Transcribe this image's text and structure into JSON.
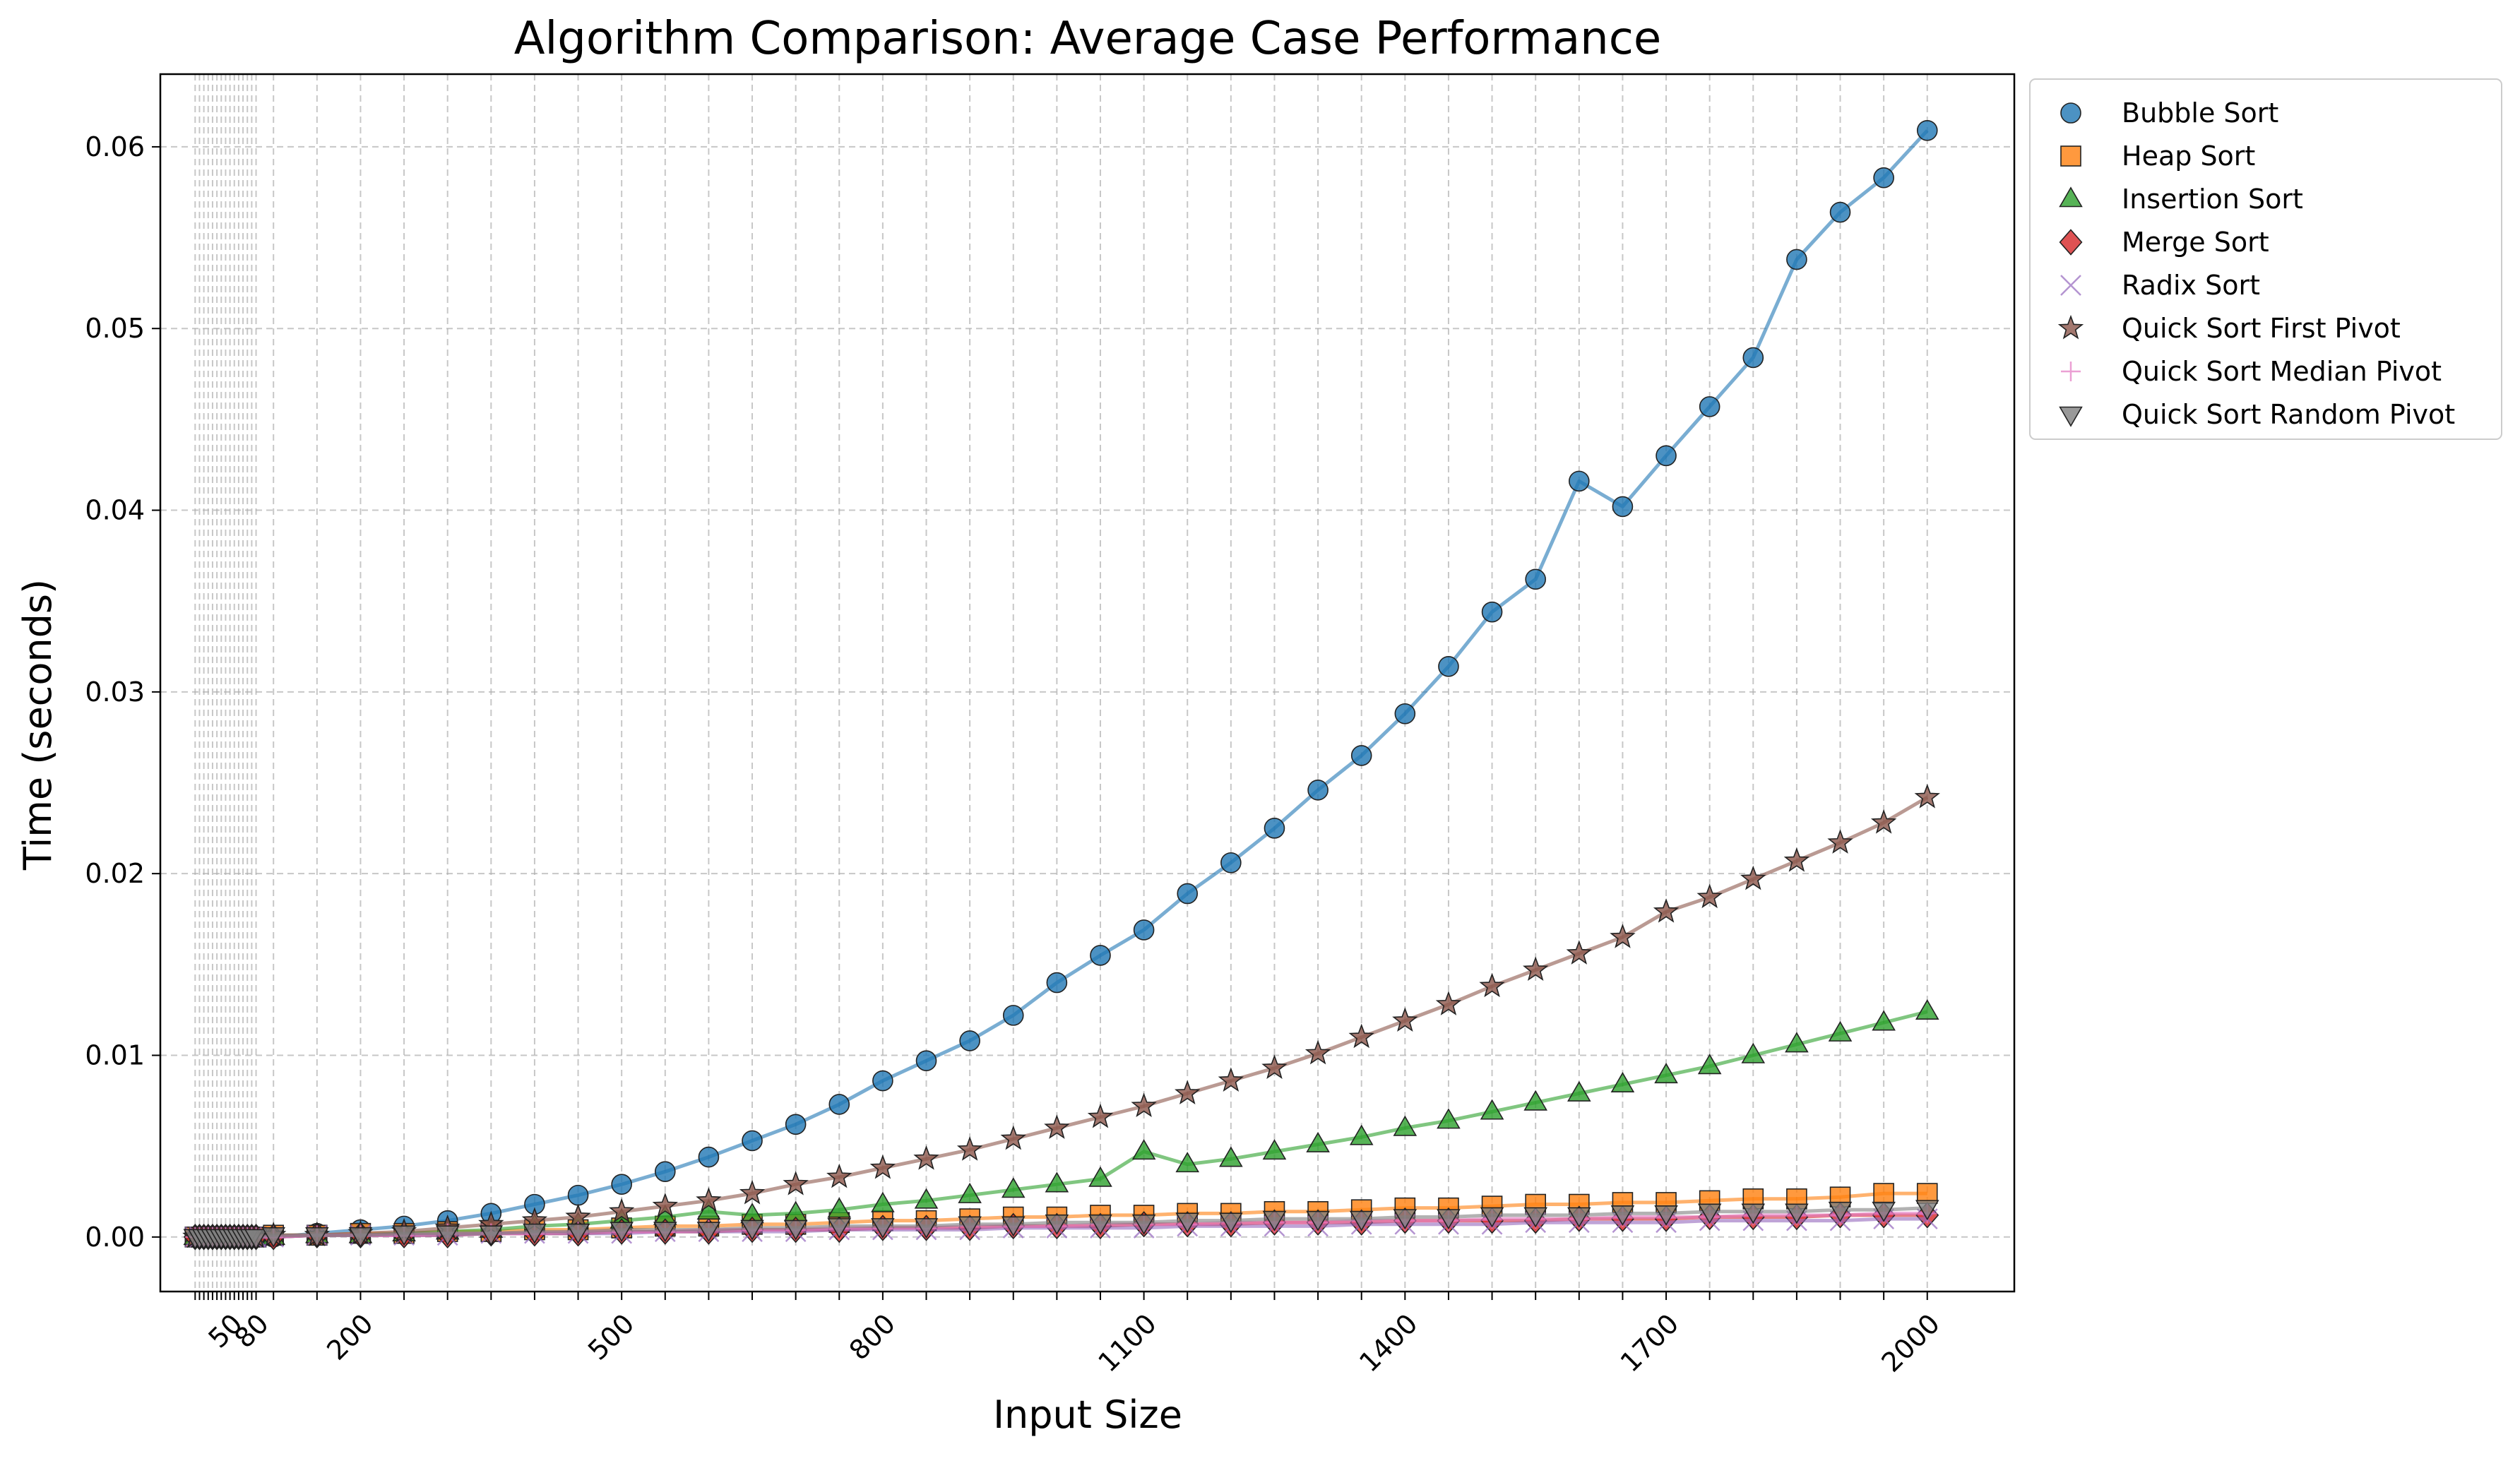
{
  "chart_data": {
    "type": "line",
    "title": "Algorithm Comparison: Average Case Performance",
    "xlabel": "Input Size",
    "ylabel": "Time (seconds)",
    "xlim": [
      -30,
      2100
    ],
    "ylim": [
      -0.003,
      0.064
    ],
    "grid": true,
    "legend_position": "outside-top-right",
    "x_ticks": [
      10,
      15,
      20,
      25,
      30,
      35,
      40,
      45,
      50,
      55,
      60,
      65,
      70,
      75,
      80,
      100,
      150,
      200,
      250,
      300,
      350,
      400,
      450,
      500,
      550,
      600,
      650,
      700,
      750,
      800,
      850,
      900,
      950,
      1000,
      1050,
      1100,
      1150,
      1200,
      1250,
      1300,
      1350,
      1400,
      1450,
      1500,
      1550,
      1600,
      1650,
      1700,
      1750,
      1800,
      1850,
      1900,
      1950,
      2000
    ],
    "x_tick_labels": [
      {
        "value": 50,
        "label": "50"
      },
      {
        "value": 80,
        "label": "80"
      },
      {
        "value": 200,
        "label": "200"
      },
      {
        "value": 500,
        "label": "500"
      },
      {
        "value": 800,
        "label": "800"
      },
      {
        "value": 1100,
        "label": "1100"
      },
      {
        "value": 1400,
        "label": "1400"
      },
      {
        "value": 1700,
        "label": "1700"
      },
      {
        "value": 2000,
        "label": "2000"
      }
    ],
    "y_ticks": [
      {
        "value": 0.0,
        "label": "0.00"
      },
      {
        "value": 0.01,
        "label": "0.01"
      },
      {
        "value": 0.02,
        "label": "0.02"
      },
      {
        "value": 0.03,
        "label": "0.03"
      },
      {
        "value": 0.04,
        "label": "0.04"
      },
      {
        "value": 0.05,
        "label": "0.05"
      },
      {
        "value": 0.06,
        "label": "0.06"
      }
    ],
    "x": [
      10,
      15,
      20,
      25,
      30,
      35,
      40,
      45,
      50,
      55,
      60,
      65,
      70,
      75,
      80,
      100,
      150,
      200,
      250,
      300,
      350,
      400,
      450,
      500,
      550,
      600,
      650,
      700,
      750,
      800,
      850,
      900,
      950,
      1000,
      1050,
      1100,
      1150,
      1200,
      1250,
      1300,
      1350,
      1400,
      1450,
      1500,
      1550,
      1600,
      1650,
      1700,
      1750,
      1800,
      1850,
      1900,
      1950,
      2000
    ],
    "series": [
      {
        "name": "Bubble Sort",
        "color": "#1f77b4",
        "marker": "circle",
        "values": [
          0.0,
          0.0,
          0.0,
          0.0,
          0.0,
          0.0,
          0.0,
          0.0,
          0.0,
          0.0,
          0.0,
          0.0,
          0.0,
          0.0,
          0.0,
          0.0,
          0.0002,
          0.0004,
          0.0006,
          0.0009,
          0.0013,
          0.0018,
          0.0023,
          0.0029,
          0.0036,
          0.0044,
          0.0053,
          0.0062,
          0.0073,
          0.0086,
          0.0097,
          0.0108,
          0.0122,
          0.014,
          0.0155,
          0.0169,
          0.0189,
          0.0206,
          0.0225,
          0.0246,
          0.0265,
          0.0288,
          0.0314,
          0.0344,
          0.0362,
          0.0416,
          0.0402,
          0.043,
          0.0457,
          0.0484,
          0.0538,
          0.0564,
          0.0583,
          0.0609
        ]
      },
      {
        "name": "Heap Sort",
        "color": "#ff7f0e",
        "marker": "square",
        "values": [
          0.0,
          0.0,
          0.0,
          0.0,
          0.0,
          0.0,
          0.0,
          0.0,
          0.0,
          0.0,
          0.0,
          0.0,
          0.0,
          0.0,
          0.0,
          0.0001,
          0.0001,
          0.0002,
          0.0002,
          0.0003,
          0.0003,
          0.0004,
          0.0004,
          0.0005,
          0.0006,
          0.0006,
          0.0007,
          0.0007,
          0.0008,
          0.0009,
          0.0009,
          0.001,
          0.0011,
          0.0011,
          0.0012,
          0.0012,
          0.0013,
          0.0013,
          0.0014,
          0.0014,
          0.0015,
          0.0016,
          0.0016,
          0.0017,
          0.0018,
          0.0018,
          0.0019,
          0.0019,
          0.002,
          0.0021,
          0.0021,
          0.0022,
          0.0024,
          0.0024
        ]
      },
      {
        "name": "Insertion Sort",
        "color": "#2ca02c",
        "marker": "triangle-up",
        "values": [
          0.0,
          0.0,
          0.0,
          0.0,
          0.0,
          0.0,
          0.0,
          0.0,
          0.0,
          0.0,
          0.0,
          0.0,
          0.0,
          0.0,
          0.0,
          0.0,
          0.0001,
          0.0001,
          0.0002,
          0.0003,
          0.0004,
          0.0006,
          0.0007,
          0.0009,
          0.0011,
          0.0014,
          0.0012,
          0.0013,
          0.0015,
          0.0018,
          0.002,
          0.0023,
          0.0026,
          0.0029,
          0.0032,
          0.0047,
          0.004,
          0.0043,
          0.0047,
          0.0051,
          0.0055,
          0.006,
          0.0064,
          0.0069,
          0.0074,
          0.0079,
          0.0084,
          0.0089,
          0.0094,
          0.01,
          0.0106,
          0.0112,
          0.0118,
          0.0124
        ]
      },
      {
        "name": "Merge Sort",
        "color": "#d62728",
        "marker": "diamond",
        "values": [
          0.0,
          0.0,
          0.0,
          0.0,
          0.0,
          0.0,
          0.0,
          0.0,
          0.0,
          0.0,
          0.0,
          0.0,
          0.0,
          0.0,
          0.0,
          0.0,
          0.0001,
          0.0001,
          0.0001,
          0.0001,
          0.0002,
          0.0002,
          0.0002,
          0.0003,
          0.0003,
          0.0003,
          0.0004,
          0.0004,
          0.0004,
          0.0005,
          0.0005,
          0.0005,
          0.0006,
          0.0006,
          0.0006,
          0.0007,
          0.0007,
          0.0007,
          0.0008,
          0.0008,
          0.0008,
          0.0009,
          0.0009,
          0.0009,
          0.0009,
          0.001,
          0.001,
          0.001,
          0.0011,
          0.0011,
          0.0011,
          0.0012,
          0.0012,
          0.0012
        ]
      },
      {
        "name": "Radix Sort",
        "color": "#9467bd",
        "marker": "x",
        "values": [
          0.0,
          0.0,
          0.0,
          0.0,
          0.0,
          0.0,
          0.0,
          0.0,
          0.0,
          0.0,
          0.0,
          0.0,
          0.0,
          0.0,
          0.0,
          0.0,
          0.0001,
          0.0001,
          0.0001,
          0.0001,
          0.0002,
          0.0002,
          0.0002,
          0.0002,
          0.0003,
          0.0003,
          0.0003,
          0.0003,
          0.0004,
          0.0004,
          0.0004,
          0.0004,
          0.0005,
          0.0005,
          0.0005,
          0.0005,
          0.0006,
          0.0006,
          0.0006,
          0.0006,
          0.0007,
          0.0007,
          0.0007,
          0.0007,
          0.0008,
          0.0008,
          0.0008,
          0.0008,
          0.0009,
          0.0009,
          0.0009,
          0.0009,
          0.001,
          0.001
        ]
      },
      {
        "name": "Quick Sort First Pivot",
        "color": "#8c564b",
        "marker": "star",
        "values": [
          0.0,
          0.0,
          0.0,
          0.0,
          0.0,
          0.0,
          0.0,
          0.0,
          0.0,
          0.0,
          0.0,
          0.0,
          0.0,
          0.0,
          0.0,
          0.0001,
          0.0001,
          0.0002,
          0.0003,
          0.0005,
          0.0007,
          0.0009,
          0.0011,
          0.0014,
          0.0017,
          0.002,
          0.0024,
          0.0029,
          0.0033,
          0.0038,
          0.0043,
          0.0048,
          0.0054,
          0.006,
          0.0066,
          0.0072,
          0.0079,
          0.0086,
          0.0093,
          0.0101,
          0.011,
          0.0119,
          0.0128,
          0.0138,
          0.0147,
          0.0156,
          0.0165,
          0.0179,
          0.0187,
          0.0197,
          0.0207,
          0.0217,
          0.0228,
          0.0242
        ]
      },
      {
        "name": "Quick Sort Median Pivot",
        "color": "#e377c2",
        "marker": "plus",
        "values": [
          0.0,
          0.0,
          0.0,
          0.0,
          0.0,
          0.0,
          0.0,
          0.0,
          0.0,
          0.0,
          0.0,
          0.0,
          0.0,
          0.0,
          0.0,
          0.0,
          0.0001,
          0.0001,
          0.0001,
          0.0002,
          0.0002,
          0.0002,
          0.0003,
          0.0003,
          0.0003,
          0.0004,
          0.0004,
          0.0004,
          0.0005,
          0.0005,
          0.0005,
          0.0006,
          0.0006,
          0.0006,
          0.0007,
          0.0007,
          0.0007,
          0.0008,
          0.0008,
          0.0008,
          0.0009,
          0.0009,
          0.0009,
          0.001,
          0.001,
          0.001,
          0.0011,
          0.0011,
          0.0011,
          0.0012,
          0.0012,
          0.0012,
          0.0013,
          0.0013
        ]
      },
      {
        "name": "Quick Sort Random Pivot",
        "color": "#7f7f7f",
        "marker": "triangle-down",
        "values": [
          0.0,
          0.0,
          0.0,
          0.0,
          0.0,
          0.0,
          0.0,
          0.0,
          0.0,
          0.0,
          0.0,
          0.0,
          0.0,
          0.0,
          0.0,
          0.0001,
          0.0001,
          0.0001,
          0.0002,
          0.0002,
          0.0002,
          0.0003,
          0.0003,
          0.0004,
          0.0004,
          0.0004,
          0.0005,
          0.0005,
          0.0006,
          0.0006,
          0.0006,
          0.0007,
          0.0007,
          0.0008,
          0.0008,
          0.0008,
          0.0009,
          0.0009,
          0.001,
          0.001,
          0.001,
          0.0011,
          0.0011,
          0.0012,
          0.0012,
          0.0012,
          0.0013,
          0.0013,
          0.0014,
          0.0014,
          0.0014,
          0.0015,
          0.0015,
          0.0016
        ]
      }
    ]
  }
}
